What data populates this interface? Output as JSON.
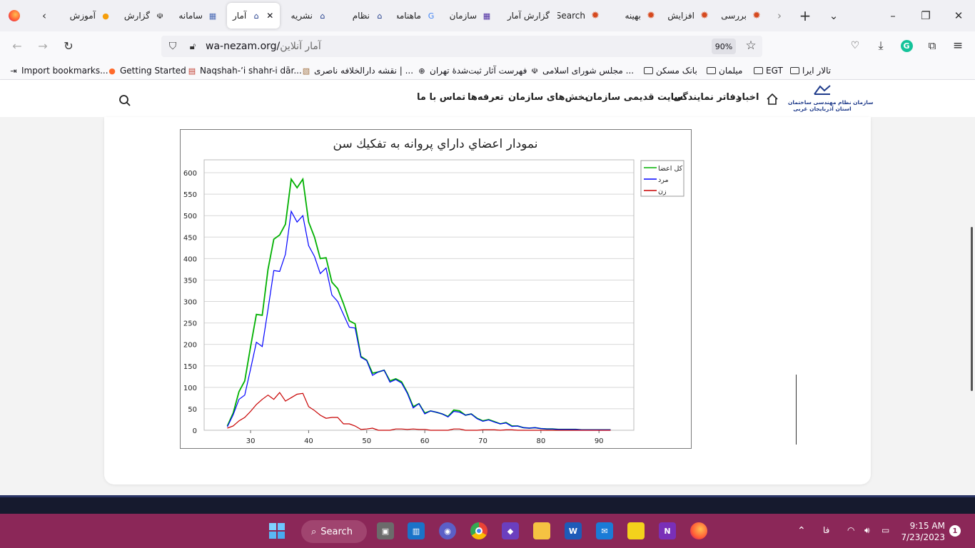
{
  "browser": {
    "tabs": [
      {
        "label": "بررسی",
        "icon": "star-badge-icon",
        "color": "#d64a1f"
      },
      {
        "label": "افزایش",
        "icon": "star-badge-icon",
        "color": "#d64a1f"
      },
      {
        "label": "بهینه",
        "icon": "star-badge-icon",
        "color": "#d64a1f"
      },
      {
        "label": "Search",
        "icon": "star-badge-icon",
        "color": "#d64a1f"
      },
      {
        "label": "گزارش آمار",
        "icon": "none",
        "color": "#777"
      },
      {
        "label": "سازمان",
        "icon": "grid-logo-icon",
        "color": "#4b2aa0"
      },
      {
        "label": "ماهنامه",
        "icon": "google-icon",
        "color": "#4285f4"
      },
      {
        "label": "نظام",
        "icon": "nezam-logo-icon",
        "color": "#1e3a8a"
      },
      {
        "label": "نشریه",
        "icon": "nezam-logo-icon",
        "color": "#1e3a8a"
      },
      {
        "label": "آمار",
        "icon": "nezam-logo-icon",
        "color": "#1e3a8a",
        "active": true
      },
      {
        "label": "سامانه",
        "icon": "grid-logo-icon",
        "color": "#4b6bb5"
      },
      {
        "label": "گزارش",
        "icon": "emblem-icon",
        "color": "#222"
      },
      {
        "label": "آموزش",
        "icon": "orange-logo-icon",
        "color": "#f59e0b"
      }
    ],
    "url_domain": "wa-nezam.org/",
    "url_path": "آمار آنلاین",
    "zoom": "90%"
  },
  "bookmarks": [
    {
      "label": "Import bookmarks...",
      "icon": "import-icon"
    },
    {
      "label": "Getting Started",
      "icon": "firefox-icon"
    },
    {
      "label": "Naqshah-ʼi shahr-i dār...",
      "icon": "library-icon"
    },
    {
      "label": "نقشه دارالخلافه ناصری | ...",
      "icon": "map-icon"
    },
    {
      "label": "فهرست آثار ثبت‌شدهٔ تهران",
      "icon": "globe-icon"
    },
    {
      "label": "مجلس شورای اسلامی ...",
      "icon": "emblem-icon"
    },
    {
      "label": "بانک مسکن",
      "icon": "folder-icon"
    },
    {
      "label": "میلمان",
      "icon": "folder-icon"
    },
    {
      "label": "EGT",
      "icon": "folder-icon"
    },
    {
      "label": "تالار ایرا",
      "icon": "folder-icon"
    }
  ],
  "site": {
    "logo_line1": "سازمان نظام مهندسی ساختمان",
    "logo_line2": "استان آذربایجان غربی",
    "menu": [
      "اخبار",
      "دفاتر نمایندگی",
      "سایت قدیمی سازمان",
      "بخش‌های سازمان",
      "تعرفه‌ها",
      "تماس با ما"
    ]
  },
  "chart_data": {
    "type": "line",
    "title": "نمودار اعضاي داراي پروانه به تفكيك سن",
    "xlabel": "",
    "ylabel": "",
    "xlim": [
      22,
      96
    ],
    "ylim": [
      0,
      630
    ],
    "xticks": [
      30,
      40,
      50,
      60,
      70,
      80,
      90
    ],
    "yticks": [
      0,
      50,
      100,
      150,
      200,
      250,
      300,
      350,
      400,
      450,
      500,
      550,
      600
    ],
    "grid": "horizontal",
    "legend_position": "top-right",
    "x": [
      26,
      27,
      28,
      29,
      30,
      31,
      32,
      33,
      34,
      35,
      36,
      37,
      38,
      39,
      40,
      41,
      42,
      43,
      44,
      45,
      46,
      47,
      48,
      49,
      50,
      51,
      52,
      53,
      54,
      55,
      56,
      57,
      58,
      59,
      60,
      61,
      62,
      63,
      64,
      65,
      66,
      67,
      68,
      69,
      70,
      71,
      72,
      73,
      74,
      75,
      76,
      77,
      78,
      79,
      80,
      81,
      82,
      83,
      84,
      85,
      86,
      87,
      88,
      89,
      90,
      91,
      92
    ],
    "series": [
      {
        "name": "كل اعضا",
        "color": "#00b000",
        "values": [
          10,
          40,
          90,
          115,
          195,
          270,
          268,
          375,
          445,
          455,
          480,
          585,
          565,
          585,
          485,
          450,
          400,
          402,
          345,
          330,
          295,
          255,
          248,
          172,
          163,
          133,
          136,
          140,
          115,
          120,
          113,
          88,
          55,
          62,
          40,
          45,
          42,
          38,
          32,
          47,
          45,
          35,
          38,
          28,
          22,
          25,
          20,
          15,
          18,
          10,
          10,
          6,
          5,
          6,
          4,
          3,
          3,
          2,
          2,
          2,
          2,
          1,
          1,
          1,
          1,
          1,
          1
        ]
      },
      {
        "name": "مرد",
        "color": "#0000ff",
        "values": [
          8,
          36,
          72,
          82,
          143,
          205,
          195,
          282,
          372,
          370,
          410,
          510,
          485,
          500,
          430,
          405,
          365,
          378,
          315,
          300,
          270,
          240,
          238,
          170,
          162,
          128,
          136,
          140,
          112,
          118,
          110,
          86,
          52,
          62,
          38,
          45,
          42,
          38,
          31,
          44,
          42,
          35,
          38,
          27,
          21,
          24,
          19,
          15,
          17,
          9,
          10,
          6,
          5,
          6,
          4,
          3,
          3,
          2,
          2,
          2,
          2,
          1,
          1,
          1,
          1,
          1,
          1
        ]
      },
      {
        "name": "زن",
        "color": "#c80000",
        "values": [
          5,
          10,
          22,
          30,
          44,
          60,
          72,
          82,
          72,
          88,
          68,
          76,
          84,
          86,
          55,
          46,
          35,
          28,
          30,
          30,
          15,
          15,
          10,
          2,
          3,
          5,
          0,
          0,
          0,
          3,
          3,
          2,
          3,
          2,
          2,
          0,
          0,
          0,
          0,
          3,
          3,
          0,
          0,
          0,
          1,
          1,
          1,
          0,
          1,
          1,
          0,
          0,
          0,
          0,
          0,
          0,
          0,
          0,
          0,
          0,
          0,
          0,
          0,
          0,
          0,
          0,
          0
        ]
      }
    ]
  },
  "taskbar": {
    "search_label": "Search",
    "lang": "فا",
    "time": "9:15 AM",
    "date": "7/23/2023",
    "notifications": "1"
  }
}
